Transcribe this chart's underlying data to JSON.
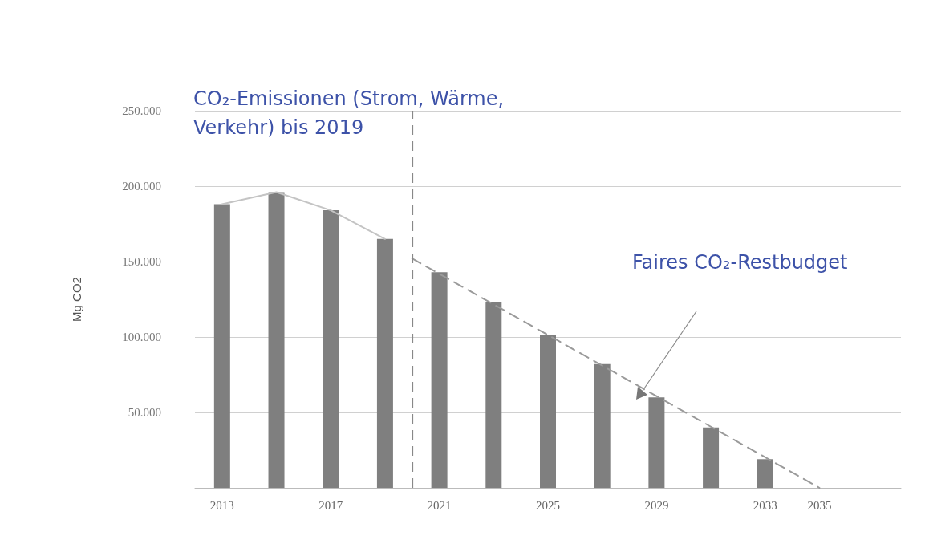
{
  "chart_data": {
    "type": "bar",
    "title": "CO₂-Emissionen (Strom, Wärme, Verkehr) bis 2019",
    "ylabel": "Mg CO2",
    "x": [
      2013,
      2015,
      2017,
      2019,
      2021,
      2023,
      2025,
      2027,
      2029,
      2031,
      2033
    ],
    "series": [
      {
        "color": "#7f7f7f",
        "values": [
          188000,
          196000,
          184000,
          165000,
          143000,
          123000,
          101000,
          82000,
          60000,
          40000,
          19000
        ]
      },
      {
        "type": "line",
        "color": "#c4c4c4",
        "x": [
          2013,
          2015,
          2017,
          2019
        ],
        "values": [
          188000,
          196000,
          184000,
          165000
        ],
        "line_style": "solid"
      },
      {
        "type": "line",
        "color": "#9a9a9a",
        "x": [
          2020,
          2035
        ],
        "values": [
          152000,
          0
        ],
        "line_style": "dashed"
      }
    ],
    "xlim": [
      2012,
      2038
    ],
    "xticks": [
      2013,
      2017,
      2021,
      2025,
      2029,
      2033,
      2035
    ],
    "ylim": [
      0,
      250000
    ],
    "yticks": [
      {
        "value": 0,
        "label": null
      },
      {
        "value": 50000,
        "label": "50.000"
      },
      {
        "value": 100000,
        "label": "100.000"
      },
      {
        "value": 150000,
        "label": "150.000"
      },
      {
        "value": 200000,
        "label": "200.000"
      },
      {
        "value": 250000,
        "label": "250.000"
      }
    ],
    "ref_lines": [
      {
        "axis": "x",
        "value": 2020,
        "color": "#888888",
        "line_style": "dashed"
      }
    ],
    "annotations": [
      "Faires CO₂-Restbudget"
    ],
    "grid": "y",
    "marker": "none"
  }
}
